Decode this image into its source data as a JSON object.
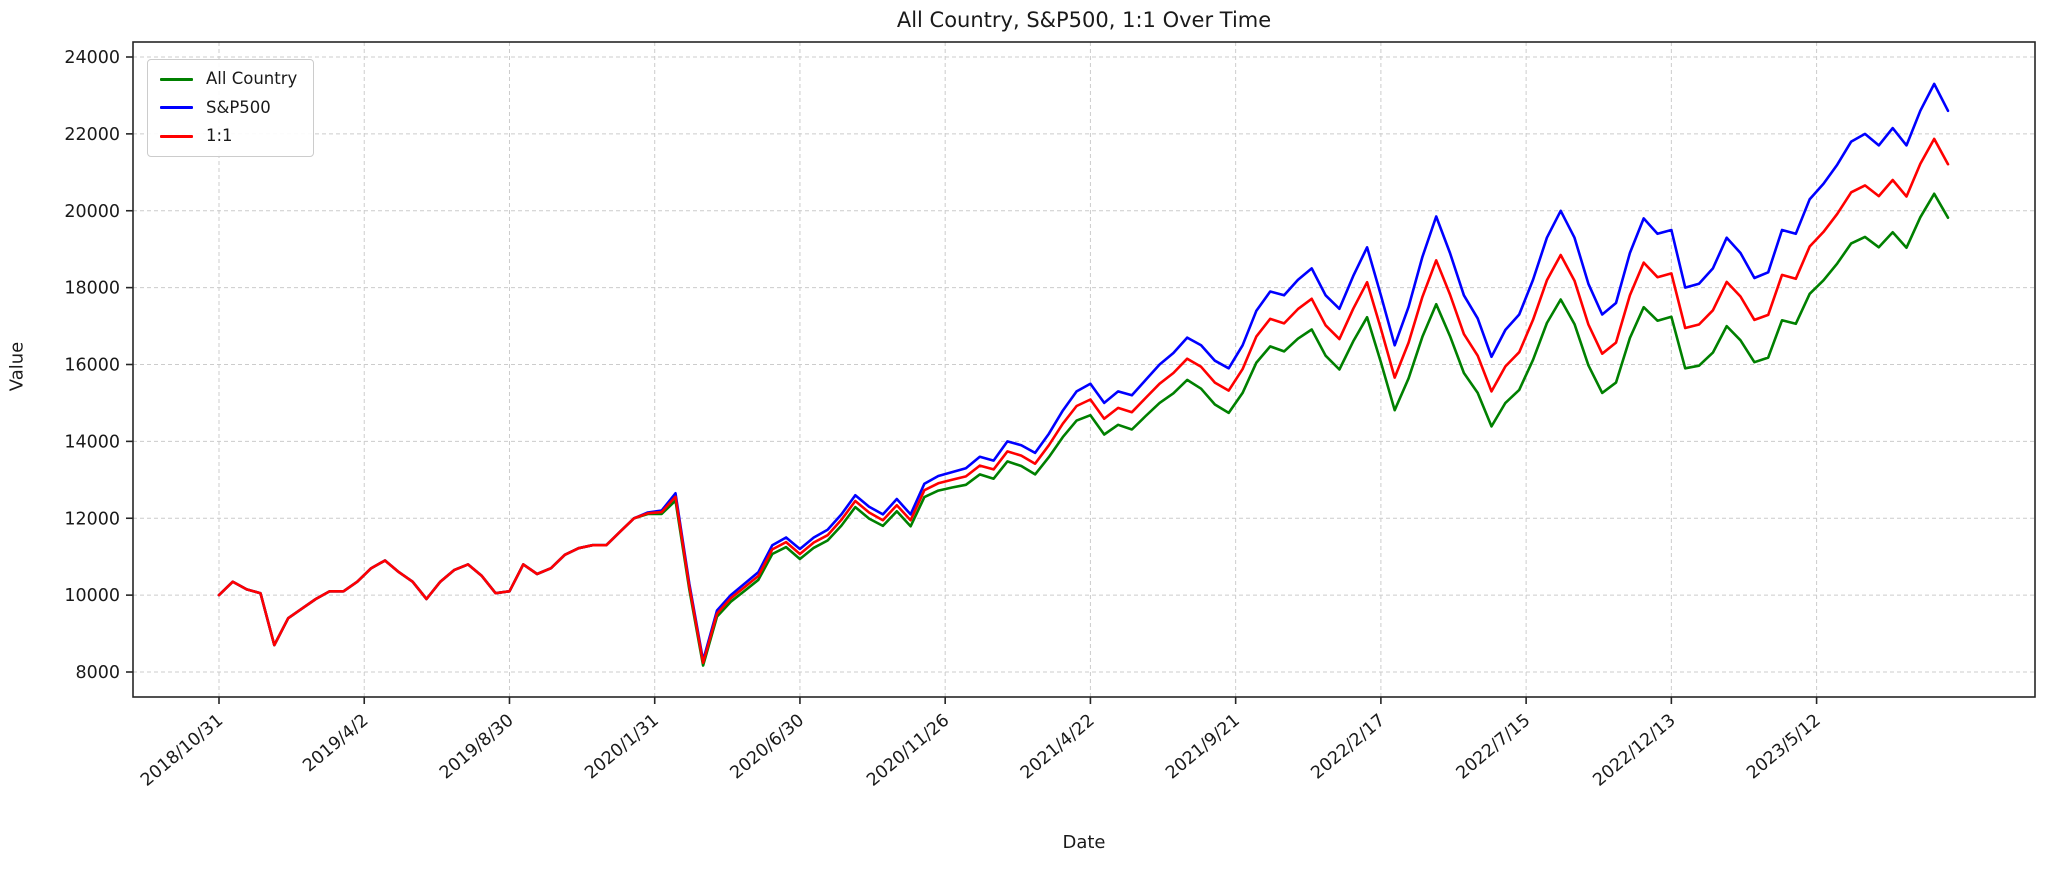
{
  "title": "All Country, S&P500, 1:1 Over Time",
  "chart_data": {
    "type": "line",
    "title": "All Country, S&P500, 1:1 Over Time",
    "xlabel": "Date",
    "ylabel": "Value",
    "grid": true,
    "grid_style": "dashed",
    "legend_position": "upper left",
    "background_color": "#ffffff",
    "text_color": "#1a1a1a",
    "grid_color": "#cccccc",
    "spine_color": "#262626",
    "ylim": [
      7400,
      24400
    ],
    "y_ticks": [
      8000,
      10000,
      12000,
      14000,
      16000,
      18000,
      20000,
      22000,
      24000
    ],
    "x_tick_labels": [
      "2018/10/31",
      "2019/4/2",
      "2019/8/30",
      "2020/1/31",
      "2020/6/30",
      "2020/11/26",
      "2021/4/22",
      "2021/9/21",
      "2022/2/17",
      "2022/7/15",
      "2022/12/13",
      "2023/5/12"
    ],
    "x_tick_days": [
      0,
      105,
      210,
      315,
      420,
      525,
      630,
      735,
      840,
      945,
      1050,
      1155
    ],
    "x_day_span": 1250,
    "x_day_step": 10,
    "x_tick_rotation_deg": 40,
    "series": [
      {
        "name": "All Country",
        "color": "#008000",
        "values": [
          10000,
          10350,
          10150,
          10050,
          8700,
          9400,
          9650,
          9900,
          10100,
          10100,
          10350,
          10700,
          10900,
          10600,
          10350,
          9900,
          10350,
          10650,
          10800,
          10500,
          10050,
          10100,
          10800,
          10550,
          10700,
          11050,
          11220,
          11300,
          11300,
          11650,
          12000,
          12110,
          12110,
          12460,
          10150,
          8170,
          9440,
          9830,
          10110,
          10400,
          11070,
          11250,
          10940,
          11230,
          11420,
          11810,
          12290,
          11990,
          11800,
          12180,
          11790,
          12550,
          12720,
          12800,
          12870,
          13140,
          13030,
          13480,
          13360,
          13140,
          13590,
          14110,
          14540,
          14680,
          14180,
          14430,
          14310,
          14660,
          15000,
          15250,
          15600,
          15370,
          14960,
          14740,
          15260,
          16050,
          16470,
          16340,
          16670,
          16910,
          16230,
          15870,
          16600,
          17230,
          16060,
          14810,
          15640,
          16720,
          17570,
          16740,
          15780,
          15260,
          14390,
          15000,
          15340,
          16120,
          17080,
          17690,
          17050,
          15980,
          15260,
          15530,
          16690,
          17490,
          17140,
          17240,
          15900,
          15970,
          16310,
          17000,
          16630,
          16060,
          16180,
          17150,
          17060,
          17840,
          18190,
          18630,
          19150,
          19320,
          19050,
          19440,
          19040,
          19830,
          20440,
          19820
        ]
      },
      {
        "name": "S&P500",
        "color": "#0000ff",
        "values": [
          10000,
          10350,
          10150,
          10050,
          8700,
          9400,
          9650,
          9900,
          10100,
          10100,
          10350,
          10700,
          10900,
          10600,
          10350,
          9900,
          10350,
          10650,
          10800,
          10500,
          10050,
          10100,
          10800,
          10550,
          10700,
          11050,
          11220,
          11300,
          11300,
          11650,
          12000,
          12150,
          12200,
          12650,
          10300,
          8300,
          9600,
          10000,
          10300,
          10600,
          11300,
          11500,
          11200,
          11500,
          11700,
          12100,
          12600,
          12300,
          12100,
          12500,
          12100,
          12900,
          13100,
          13200,
          13300,
          13600,
          13500,
          14000,
          13900,
          13700,
          14200,
          14800,
          15300,
          15500,
          15000,
          15300,
          15200,
          15600,
          16000,
          16300,
          16700,
          16500,
          16100,
          15900,
          16500,
          17400,
          17900,
          17800,
          18200,
          18500,
          17800,
          17450,
          18300,
          19050,
          17800,
          16500,
          17500,
          18800,
          19850,
          18900,
          17800,
          17200,
          16200,
          16900,
          17300,
          18200,
          19300,
          20000,
          19300,
          18100,
          17300,
          17600,
          18900,
          19800,
          19400,
          19500,
          18000,
          18100,
          18500,
          19300,
          18900,
          18250,
          18400,
          19500,
          19400,
          20300,
          20700,
          21200,
          21800,
          22000,
          21700,
          22150,
          21700,
          22600,
          23300,
          22600
        ]
      },
      {
        "name": "1:1",
        "color": "#ff0000",
        "values": [
          10000,
          10350,
          10150,
          10050,
          8700,
          9400,
          9650,
          9900,
          10100,
          10100,
          10350,
          10700,
          10900,
          10600,
          10350,
          9900,
          10350,
          10650,
          10800,
          10500,
          10050,
          10100,
          10800,
          10550,
          10700,
          11050,
          11220,
          11300,
          11300,
          11650,
          12000,
          12130,
          12160,
          12560,
          10230,
          8240,
          9520,
          9920,
          10210,
          10500,
          11190,
          11380,
          11070,
          11370,
          11560,
          11960,
          12450,
          12150,
          11950,
          12340,
          11950,
          12730,
          12910,
          13000,
          13090,
          13370,
          13270,
          13740,
          13630,
          13420,
          13900,
          14460,
          14920,
          15090,
          14590,
          14870,
          14760,
          15130,
          15500,
          15780,
          16150,
          15940,
          15530,
          15320,
          15880,
          16730,
          17190,
          17070,
          17440,
          17710,
          17020,
          16660,
          17450,
          18140,
          16930,
          15660,
          16570,
          17760,
          18710,
          17820,
          16790,
          16230,
          15300,
          15950,
          16320,
          17160,
          18190,
          18850,
          18180,
          17040,
          16280,
          16570,
          17800,
          18650,
          18270,
          18370,
          16950,
          17040,
          17410,
          18150,
          17770,
          17160,
          17290,
          18330,
          18230,
          19070,
          19450,
          19920,
          20480,
          20660,
          20380,
          20800,
          20370,
          21220,
          21870,
          21210
        ]
      }
    ]
  }
}
